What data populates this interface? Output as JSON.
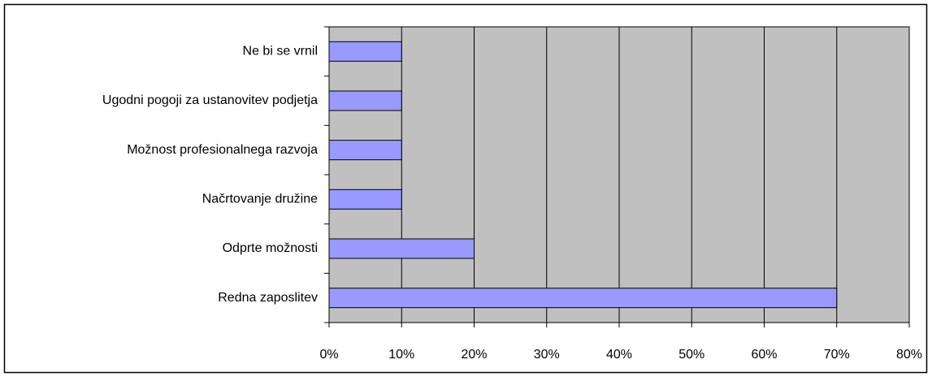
{
  "chart_data": {
    "type": "bar",
    "orientation": "horizontal",
    "categories": [
      "Ne bi se vrnil",
      "Ugodni pogoji za ustanovitev podjetja",
      "Možnost profesionalnega razvoja",
      "Načrtovanje družine",
      "Odprte možnosti",
      "Redna zaposlitev"
    ],
    "values": [
      10,
      10,
      10,
      10,
      20,
      70
    ],
    "color": "#9999ff",
    "xlim": [
      0,
      80
    ],
    "xticks": [
      {
        "value": 0,
        "label": "0%"
      },
      {
        "value": 10,
        "label": "10%"
      },
      {
        "value": 20,
        "label": "20%"
      },
      {
        "value": 30,
        "label": "30%"
      },
      {
        "value": 40,
        "label": "40%"
      },
      {
        "value": 50,
        "label": "50%"
      },
      {
        "value": 60,
        "label": "60%"
      },
      {
        "value": 70,
        "label": "70%"
      },
      {
        "value": 80,
        "label": "80%"
      }
    ],
    "grid": true
  }
}
